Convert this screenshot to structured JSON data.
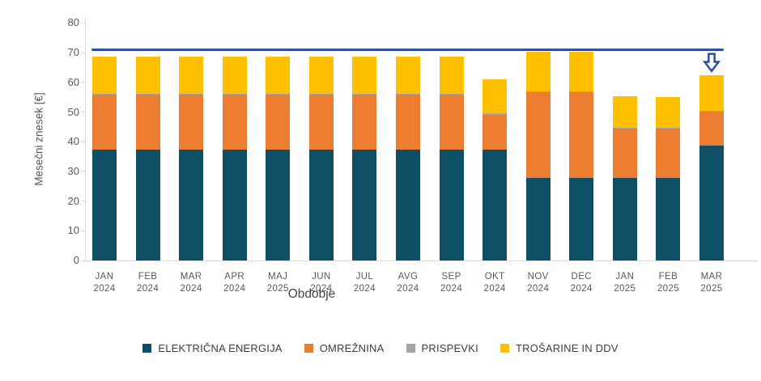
{
  "chart_data": {
    "type": "bar",
    "stacked": true,
    "title": "",
    "xlabel": "Obdobje",
    "ylabel": "Mesečni znesek [€]",
    "ylim": [
      0,
      80
    ],
    "yticks": [
      0,
      10,
      20,
      30,
      40,
      50,
      60,
      70,
      80
    ],
    "grid": false,
    "legend_position": "bottom",
    "categories": [
      {
        "month": "JAN",
        "year": "2024"
      },
      {
        "month": "FEB",
        "year": "2024"
      },
      {
        "month": "MAR",
        "year": "2024"
      },
      {
        "month": "APR",
        "year": "2024"
      },
      {
        "month": "MAJ",
        "year": "2025"
      },
      {
        "month": "JUN",
        "year": "2024"
      },
      {
        "month": "JUL",
        "year": "2024"
      },
      {
        "month": "AVG",
        "year": "2024"
      },
      {
        "month": "SEP",
        "year": "2024"
      },
      {
        "month": "OKT",
        "year": "2024"
      },
      {
        "month": "NOV",
        "year": "2024"
      },
      {
        "month": "DEC",
        "year": "2024"
      },
      {
        "month": "JAN",
        "year": "2025"
      },
      {
        "month": "FEB",
        "year": "2025"
      },
      {
        "month": "MAR",
        "year": "2025"
      }
    ],
    "series": [
      {
        "name": "ELEKTRIČNA ENERGIJA",
        "color": "#0e4f66",
        "values": [
          37.3,
          37.3,
          37.3,
          37.3,
          37.3,
          37.3,
          37.3,
          37.3,
          37.3,
          37.3,
          27.8,
          27.8,
          27.8,
          27.8,
          38.7
        ]
      },
      {
        "name": "OMREŽNINA",
        "color": "#ed7d31",
        "values": [
          18.5,
          18.5,
          18.5,
          18.5,
          18.5,
          18.5,
          18.5,
          18.5,
          18.5,
          11.8,
          28.8,
          28.8,
          16.6,
          16.6,
          11.4
        ]
      },
      {
        "name": "PRISPEVKI",
        "color": "#a5a5a5",
        "values": [
          0.3,
          0.3,
          0.3,
          0.3,
          0.3,
          0.3,
          0.3,
          0.3,
          0.3,
          0.4,
          0.4,
          0.4,
          0.3,
          0.3,
          0.4
        ]
      },
      {
        "name": "TROŠARINE IN DDV",
        "color": "#ffc000",
        "values": [
          12.7,
          12.7,
          12.7,
          12.7,
          12.7,
          12.7,
          12.7,
          12.7,
          12.7,
          11.5,
          13.4,
          13.4,
          10.6,
          10.3,
          11.9
        ]
      }
    ],
    "totals": [
      68.8,
      68.8,
      68.8,
      68.8,
      68.8,
      68.8,
      68.8,
      68.8,
      68.8,
      61.0,
      70.4,
      70.4,
      55.3,
      55.0,
      62.4
    ],
    "reference_line": {
      "value": 71,
      "color": "#2d4fa1"
    },
    "annotation_arrow": {
      "category_month": "MAR",
      "category_year": "2025",
      "category_index": 14,
      "direction": "down",
      "color": "#2d4fa1"
    }
  }
}
